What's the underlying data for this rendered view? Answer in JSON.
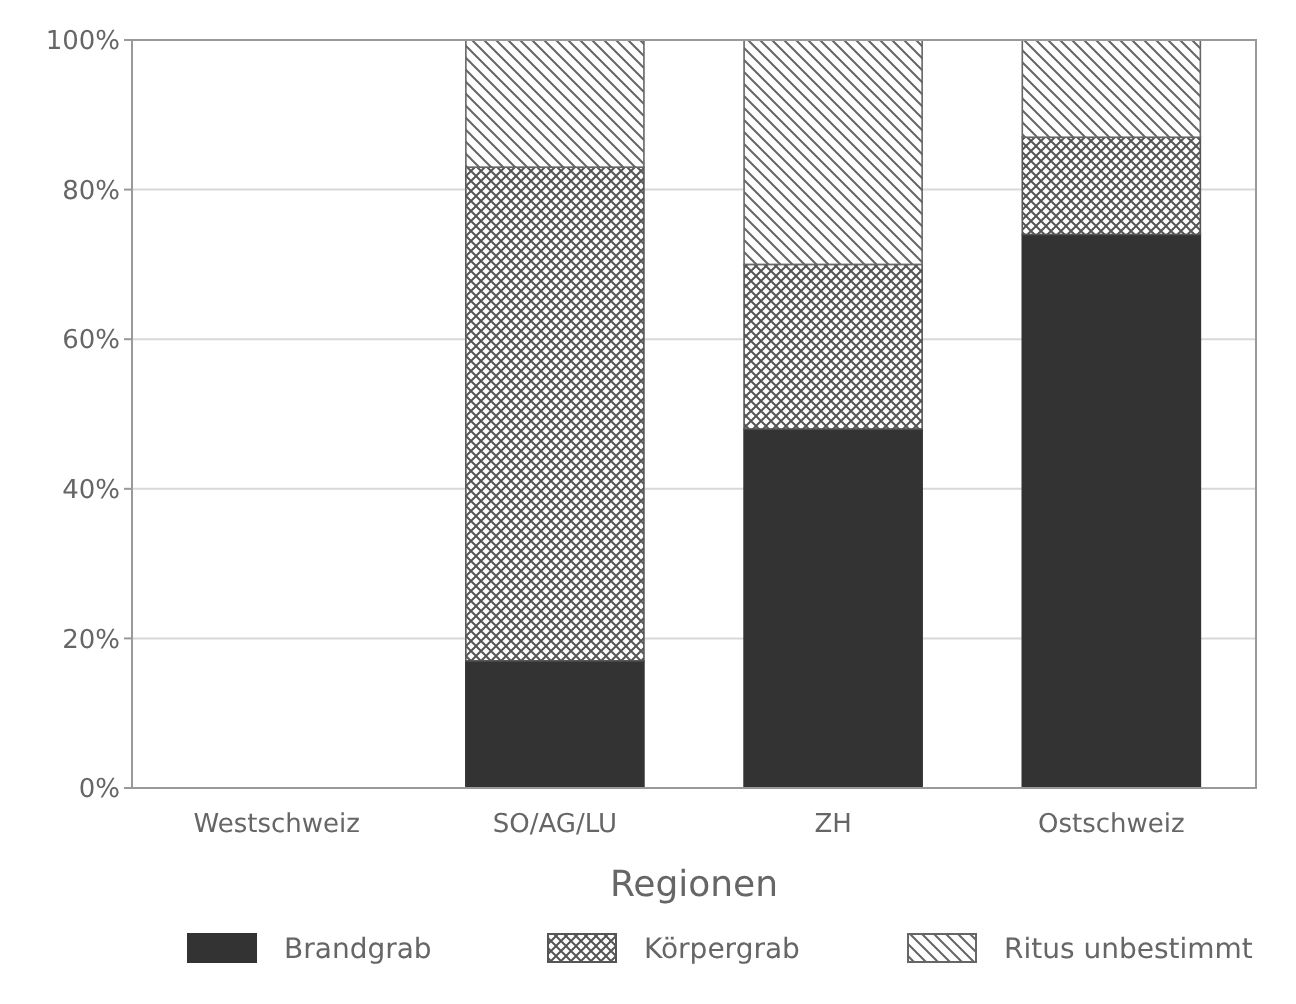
{
  "chart_data": {
    "type": "bar",
    "stacked": true,
    "xlabel": "Regionen",
    "categories": [
      "Westschweiz",
      "SO/AG/LU",
      "ZH",
      "Ostschweiz"
    ],
    "series": [
      {
        "name": "Brandgrab",
        "color": "#333333",
        "values": [
          0,
          17,
          48,
          74
        ]
      },
      {
        "name": "Körpergrab",
        "color": "#555555",
        "values": [
          0,
          66,
          22,
          13
        ]
      },
      {
        "name": "Ritus unbestimmt",
        "color": "#666666",
        "values": [
          0,
          17,
          30,
          13
        ]
      }
    ],
    "ylim": [
      0,
      100
    ],
    "yticks": [
      {
        "value": 0,
        "label": "0%"
      },
      {
        "value": 20,
        "label": "20%"
      },
      {
        "value": 40,
        "label": "40%"
      },
      {
        "value": 60,
        "label": "60%"
      },
      {
        "value": 80,
        "label": "80%"
      },
      {
        "value": 100,
        "label": "100%"
      }
    ],
    "grid": "y",
    "legend": "bottom"
  }
}
